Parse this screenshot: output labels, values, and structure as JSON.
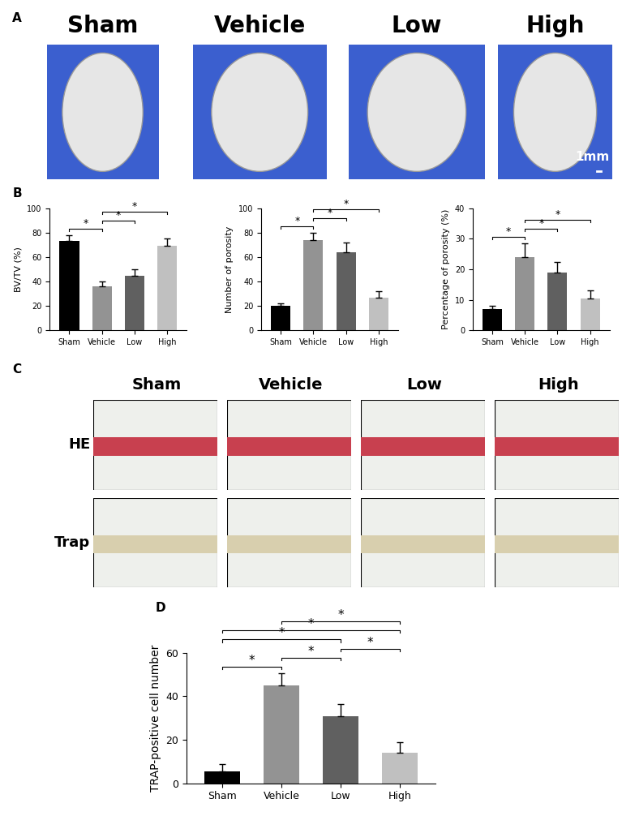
{
  "figure": {
    "panel_labels": [
      "A",
      "B",
      "C",
      "D"
    ],
    "panel_A": {
      "columns": [
        "Sham",
        "Vehicle",
        "Low",
        "High"
      ],
      "scale_bar": "1mm"
    },
    "panel_C": {
      "columns": [
        "Sham",
        "Vehicle",
        "Low",
        "High"
      ],
      "rows": [
        "HE",
        "Trap"
      ]
    }
  },
  "chart_data": [
    {
      "type": "bar",
      "y_label": "BV/TV (%)",
      "categories": [
        "Sham",
        "Vehicle",
        "Low",
        "High"
      ],
      "values": [
        73,
        36,
        45,
        69
      ],
      "errors": [
        5,
        4,
        5,
        6
      ],
      "colors": [
        "#000000",
        "#939393",
        "#606060",
        "#c0c0c0"
      ],
      "ylim": [
        0,
        100
      ],
      "yticks": [
        0,
        20,
        40,
        60,
        80,
        100
      ],
      "significance": {
        "label": "*",
        "pairs": [
          [
            0,
            1
          ],
          [
            1,
            2
          ],
          [
            1,
            3
          ]
        ]
      }
    },
    {
      "type": "bar",
      "y_label": "Number of porosity",
      "categories": [
        "Sham",
        "Vehicle",
        "Low",
        "High"
      ],
      "values": [
        20,
        74,
        64,
        27
      ],
      "errors": [
        2,
        6,
        8,
        5
      ],
      "colors": [
        "#000000",
        "#939393",
        "#606060",
        "#c0c0c0"
      ],
      "ylim": [
        0,
        100
      ],
      "yticks": [
        0,
        20,
        40,
        60,
        80,
        100
      ],
      "significance": {
        "label": "*",
        "pairs": [
          [
            0,
            1
          ],
          [
            1,
            2
          ],
          [
            1,
            3
          ]
        ]
      }
    },
    {
      "type": "bar",
      "y_label": "Percentage of porosity (%)",
      "categories": [
        "Sham",
        "Vehicle",
        "Low",
        "High"
      ],
      "values": [
        7,
        24,
        19,
        10.5
      ],
      "errors": [
        1,
        4.5,
        3.5,
        2.5
      ],
      "colors": [
        "#000000",
        "#939393",
        "#606060",
        "#c0c0c0"
      ],
      "ylim": [
        0,
        40
      ],
      "yticks": [
        0,
        10,
        20,
        30,
        40
      ],
      "significance": {
        "label": "*",
        "pairs": [
          [
            0,
            1
          ],
          [
            1,
            2
          ],
          [
            1,
            3
          ]
        ]
      }
    },
    {
      "type": "bar",
      "y_label": "TRAP-positive cell number",
      "categories": [
        "Sham",
        "Vehicle",
        "Low",
        "High"
      ],
      "values": [
        5.5,
        45,
        31,
        14
      ],
      "errors": [
        3.5,
        5.5,
        5.5,
        5
      ],
      "colors": [
        "#000000",
        "#939393",
        "#606060",
        "#c0c0c0"
      ],
      "ylim": [
        0,
        60
      ],
      "yticks": [
        0,
        20,
        40,
        60
      ],
      "significance": {
        "label": "*",
        "pairs": [
          [
            0,
            1
          ],
          [
            1,
            2
          ],
          [
            2,
            3
          ],
          [
            0,
            2
          ],
          [
            0,
            3
          ],
          [
            1,
            3
          ]
        ]
      }
    }
  ]
}
